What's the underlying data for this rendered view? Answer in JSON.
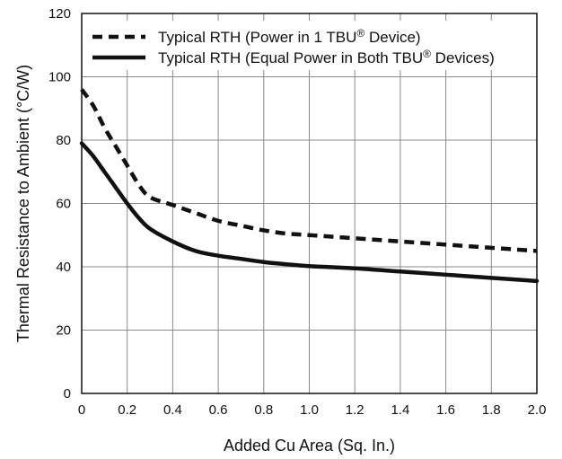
{
  "chart_data": {
    "type": "line",
    "title": "",
    "xlabel": "Added Cu Area (Sq. In.)",
    "ylabel": "Thermal Resistance to Ambient (°C/W)",
    "xlim": [
      0,
      2.0
    ],
    "ylim": [
      0,
      120
    ],
    "x_ticks": [
      "0",
      "0.2",
      "0.4",
      "0.6",
      "0.8",
      "1.0",
      "1.2",
      "1.4",
      "1.6",
      "1.8",
      "2.0"
    ],
    "y_ticks": [
      "0",
      "20",
      "40",
      "60",
      "80",
      "100",
      "120"
    ],
    "grid": true,
    "legend_position": "top",
    "series": [
      {
        "name_prefix": "Typical RTH (Power in 1 TBU",
        "name_super": "®",
        "name_suffix": " Device)",
        "style": "dashed",
        "color": "#111111",
        "x": [
          0.0,
          0.05,
          0.1,
          0.15,
          0.2,
          0.25,
          0.3,
          0.4,
          0.5,
          0.6,
          0.7,
          0.8,
          0.9,
          1.0,
          1.2,
          1.4,
          1.6,
          1.8,
          2.0
        ],
        "y": [
          96,
          91,
          84,
          78,
          72,
          66,
          62,
          59.5,
          57,
          54.5,
          53,
          51.5,
          50.5,
          50,
          49,
          48,
          47,
          46,
          45
        ]
      },
      {
        "name_prefix": "Typical RTH (Equal Power in Both TBU",
        "name_super": "®",
        "name_suffix": " Devices)",
        "style": "solid",
        "color": "#111111",
        "x": [
          0.0,
          0.05,
          0.1,
          0.15,
          0.2,
          0.25,
          0.3,
          0.4,
          0.5,
          0.6,
          0.7,
          0.8,
          0.9,
          1.0,
          1.2,
          1.4,
          1.6,
          1.8,
          2.0
        ],
        "y": [
          79,
          75,
          70,
          65,
          60,
          55.5,
          52,
          48,
          45,
          43.5,
          42.5,
          41.5,
          40.8,
          40.2,
          39.5,
          38.5,
          37.5,
          36.5,
          35.5
        ]
      }
    ]
  }
}
